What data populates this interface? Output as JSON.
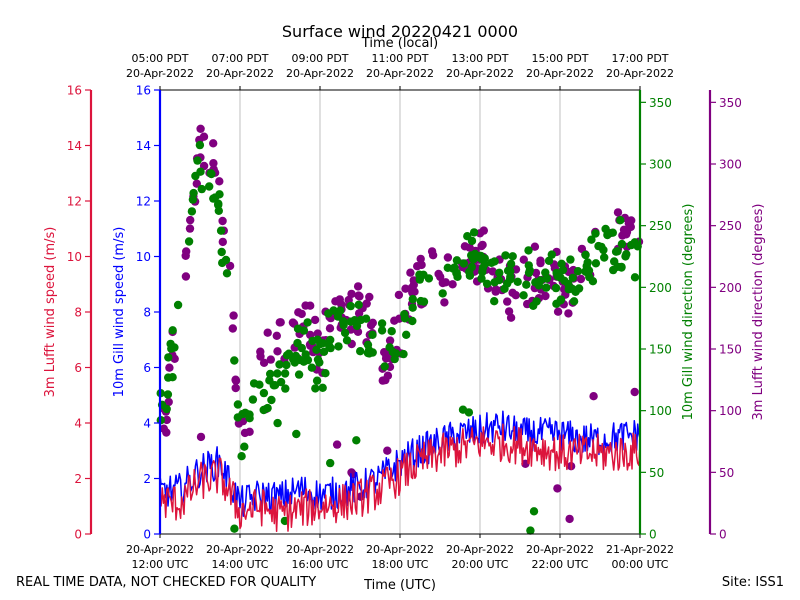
{
  "chart_data": {
    "type": "scatter",
    "title": "Surface wind 20220421 0000",
    "top_axis_label": "Time (local)",
    "bottom_axis_label": "Time (UTC)",
    "x_range_hours": [
      12,
      24
    ],
    "bottom_ticks": [
      {
        "hour": 12,
        "line1": "20-Apr-2022",
        "line2": "12:00 UTC"
      },
      {
        "hour": 14,
        "line1": "20-Apr-2022",
        "line2": "14:00 UTC"
      },
      {
        "hour": 16,
        "line1": "20-Apr-2022",
        "line2": "16:00 UTC"
      },
      {
        "hour": 18,
        "line1": "20-Apr-2022",
        "line2": "18:00 UTC"
      },
      {
        "hour": 20,
        "line1": "20-Apr-2022",
        "line2": "20:00 UTC"
      },
      {
        "hour": 22,
        "line1": "20-Apr-2022",
        "line2": "22:00 UTC"
      },
      {
        "hour": 24,
        "line1": "21-Apr-2022",
        "line2": "00:00 UTC"
      }
    ],
    "top_ticks": [
      {
        "hour": 12,
        "line1": "05:00 PDT",
        "line2": "20-Apr-2022"
      },
      {
        "hour": 14,
        "line1": "07:00 PDT",
        "line2": "20-Apr-2022"
      },
      {
        "hour": 16,
        "line1": "09:00 PDT",
        "line2": "20-Apr-2022"
      },
      {
        "hour": 18,
        "line1": "11:00 PDT",
        "line2": "20-Apr-2022"
      },
      {
        "hour": 20,
        "line1": "13:00 PDT",
        "line2": "20-Apr-2022"
      },
      {
        "hour": 22,
        "line1": "15:00 PDT",
        "line2": "20-Apr-2022"
      },
      {
        "hour": 24,
        "line1": "17:00 PDT",
        "line2": "20-Apr-2022"
      }
    ],
    "y_axes": [
      {
        "id": "lufft_speed",
        "label": "3m Lufft wind speed (m/s)",
        "color": "#dc143c",
        "range": [
          0,
          16
        ],
        "ticks": [
          0,
          2,
          4,
          6,
          8,
          10,
          12,
          14,
          16
        ]
      },
      {
        "id": "gill_speed",
        "label": "10m Gill wind speed (m/s)",
        "color": "#0000ff",
        "range": [
          0,
          16
        ],
        "ticks": [
          0,
          2,
          4,
          6,
          8,
          10,
          12,
          14,
          16
        ]
      },
      {
        "id": "gill_dir",
        "label": "10m Gill wind direction (degrees)",
        "color": "#008000",
        "range": [
          0,
          360
        ],
        "ticks": [
          0,
          50,
          100,
          150,
          200,
          250,
          300,
          350
        ]
      },
      {
        "id": "lufft_dir",
        "label": "3m Lufft wind direction (degrees)",
        "color": "#800080",
        "range": [
          0,
          360
        ],
        "ticks": [
          0,
          50,
          100,
          150,
          200,
          250,
          300,
          350
        ]
      }
    ],
    "series": [
      {
        "name": "10m Gill wind speed",
        "axis": "gill_speed",
        "kind": "line",
        "color": "#0000ff",
        "x": [
          12.0,
          12.5,
          13.0,
          13.5,
          14.0,
          14.5,
          15.0,
          15.5,
          16.0,
          16.5,
          17.0,
          17.5,
          18.0,
          18.5,
          19.0,
          19.5,
          20.0,
          20.5,
          21.0,
          21.5,
          22.0,
          22.5,
          23.0,
          23.5,
          24.0
        ],
        "values": [
          1.5,
          1.6,
          2.3,
          2.6,
          1.1,
          1.4,
          1.3,
          1.6,
          1.4,
          1.5,
          1.7,
          2.0,
          2.6,
          3.0,
          3.3,
          3.6,
          3.7,
          3.9,
          3.6,
          3.6,
          3.6,
          3.4,
          3.4,
          3.5,
          3.6
        ],
        "noise": 0.6
      },
      {
        "name": "3m Lufft wind speed",
        "axis": "lufft_speed",
        "kind": "line",
        "color": "#dc143c",
        "x": [
          12.0,
          12.5,
          13.0,
          13.5,
          14.0,
          14.5,
          15.0,
          15.5,
          16.0,
          16.5,
          17.0,
          17.5,
          18.0,
          18.5,
          19.0,
          19.5,
          20.0,
          20.5,
          21.0,
          21.5,
          22.0,
          22.5,
          23.0,
          23.5,
          24.0
        ],
        "values": [
          1.2,
          1.1,
          1.9,
          2.1,
          0.8,
          1.0,
          0.7,
          0.9,
          1.0,
          1.1,
          1.3,
          1.6,
          2.1,
          2.6,
          2.9,
          3.1,
          3.3,
          3.3,
          3.2,
          3.1,
          2.9,
          2.9,
          2.9,
          2.9,
          3.0
        ],
        "noise": 0.7
      },
      {
        "name": "10m Gill wind direction",
        "axis": "gill_dir",
        "kind": "scatter",
        "color": "#008000",
        "x": [
          12.0,
          12.3,
          12.6,
          13.0,
          13.3,
          13.7,
          14.0,
          14.4,
          14.8,
          15.2,
          15.6,
          16.0,
          16.4,
          16.8,
          17.2,
          17.6,
          18.0,
          18.4,
          18.8,
          19.2,
          19.6,
          20.0,
          20.5,
          21.0,
          21.5,
          22.0,
          22.5,
          23.0,
          23.5,
          24.0
        ],
        "values": [
          90,
          140,
          210,
          305,
          300,
          200,
          80,
          110,
          120,
          140,
          150,
          140,
          175,
          170,
          165,
          150,
          160,
          195,
          210,
          210,
          220,
          225,
          205,
          205,
          210,
          210,
          205,
          235,
          235,
          230
        ],
        "noise": 28
      },
      {
        "name": "3m Lufft wind direction",
        "axis": "lufft_dir",
        "kind": "scatter",
        "color": "#800080",
        "x": [
          12.0,
          12.3,
          12.6,
          13.0,
          13.3,
          13.7,
          14.0,
          14.4,
          14.8,
          15.2,
          15.6,
          16.0,
          16.4,
          16.8,
          17.2,
          17.6,
          18.0,
          18.4,
          18.8,
          19.2,
          19.6,
          20.0,
          20.5,
          21.0,
          21.5,
          22.0,
          22.5,
          23.0,
          23.5,
          24.0
        ],
        "values": [
          60,
          140,
          200,
          330,
          300,
          240,
          80,
          120,
          150,
          160,
          165,
          150,
          180,
          180,
          175,
          130,
          170,
          200,
          210,
          210,
          220,
          225,
          205,
          205,
          205,
          205,
          210,
          235,
          240,
          235
        ],
        "noise": 30
      }
    ]
  },
  "footer": {
    "disclaimer": "REAL TIME DATA, NOT CHECKED FOR QUALITY",
    "site": "Site: ISS1"
  }
}
